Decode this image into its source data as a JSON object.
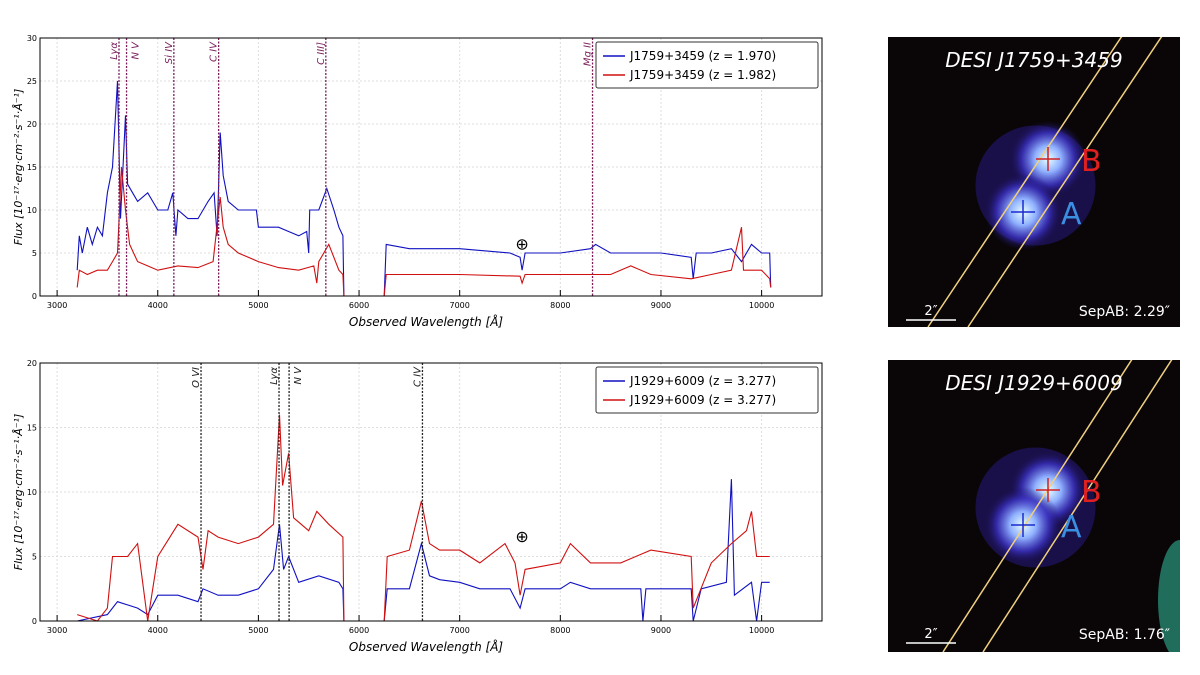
{
  "chart_data": [
    {
      "type": "line",
      "xlabel": "Observed Wavelength [Å]",
      "ylabel": "Flux [10⁻¹⁷·erg·cm⁻²·s⁻¹·Å⁻¹]",
      "xlim": [
        2830,
        10600
      ],
      "ylim": [
        0,
        30
      ],
      "xticks": [
        3000,
        4000,
        5000,
        6000,
        7000,
        8000,
        9000,
        10000
      ],
      "yticks": [
        0,
        5,
        10,
        15,
        20,
        25,
        30
      ],
      "grid": true,
      "legend_position": "top-right",
      "line_color": "#7a1f5c",
      "lines": [
        {
          "label": "Lyα",
          "x": 3615
        },
        {
          "label": "N V",
          "x": 3690
        },
        {
          "label": "Si IV",
          "x": 4160
        },
        {
          "label": "C IV",
          "x": 4605
        },
        {
          "label": "C III]",
          "x": 5670
        },
        {
          "label": "Mg II",
          "x": 8320
        }
      ],
      "telluric": {
        "symbol": "⊕",
        "x": 7620,
        "y": 6
      },
      "series": [
        {
          "name": "J1759+3459 (z = 1.970)",
          "color": "#1010c0",
          "x": [
            3200,
            3220,
            3250,
            3300,
            3350,
            3400,
            3450,
            3500,
            3550,
            3600,
            3630,
            3680,
            3700,
            3750,
            3800,
            3900,
            4000,
            4100,
            4150,
            4180,
            4200,
            4300,
            4400,
            4500,
            4560,
            4590,
            4620,
            4650,
            4700,
            4800,
            4900,
            4980,
            5000,
            5100,
            5200,
            5300,
            5400,
            5480,
            5500,
            5510,
            5600,
            5680,
            5750,
            5800,
            5840,
            5850,
            null,
            6250,
            6270,
            6500,
            7000,
            7500,
            7600,
            7620,
            7650,
            8000,
            8300,
            8350,
            8500,
            9000,
            9300,
            9320,
            9350,
            9500,
            9700,
            9800,
            9900,
            10000,
            10080,
            10090
          ],
          "y": [
            3,
            7,
            5,
            8,
            6,
            8,
            7,
            12,
            15,
            25,
            9,
            21,
            13,
            12,
            11,
            12,
            10,
            10,
            12,
            7,
            10,
            9,
            9,
            11,
            12,
            7,
            19,
            14,
            11,
            10,
            10,
            10,
            8,
            8,
            8,
            7.5,
            7,
            7.5,
            5,
            10,
            10,
            12.5,
            10,
            8,
            7,
            0,
            null,
            0,
            6,
            5.5,
            5.5,
            5,
            4.5,
            3,
            5,
            5,
            5.5,
            6,
            5,
            5,
            4.5,
            2,
            5,
            5,
            5.5,
            4,
            6,
            5,
            5,
            1
          ]
        },
        {
          "name": "J1759+3459 (z = 1.982)",
          "color": "#d01010",
          "x": [
            3200,
            3220,
            3300,
            3400,
            3500,
            3550,
            3600,
            3640,
            3680,
            3720,
            3800,
            3900,
            4000,
            4200,
            4400,
            4550,
            4620,
            4650,
            4700,
            4800,
            5000,
            5200,
            5400,
            5550,
            5580,
            5600,
            5700,
            5800,
            5840,
            5850,
            null,
            6250,
            6270,
            7000,
            7600,
            7620,
            7650,
            8000,
            8500,
            8700,
            8900,
            9300,
            9500,
            9700,
            9800,
            9820,
            10000,
            10080,
            10090
          ],
          "y": [
            1,
            3,
            2.5,
            3,
            3,
            4,
            5,
            15,
            10,
            6,
            4,
            3.5,
            3,
            3.5,
            3.3,
            4,
            11.5,
            8,
            6,
            5,
            4,
            3.3,
            3,
            3.5,
            1.5,
            4,
            6,
            3,
            2.5,
            0,
            null,
            0,
            2.5,
            2.5,
            2.3,
            1.5,
            2.5,
            2.5,
            2.5,
            3.5,
            2.5,
            2,
            2.5,
            3,
            8,
            3,
            3,
            2,
            1
          ]
        }
      ]
    },
    {
      "type": "line",
      "xlabel": "Observed Wavelength [Å]",
      "ylabel": "Flux [10⁻¹⁷·erg·cm⁻²·s⁻¹·Å⁻¹]",
      "xlim": [
        2830,
        10600
      ],
      "ylim": [
        0,
        20
      ],
      "xticks": [
        3000,
        4000,
        5000,
        6000,
        7000,
        8000,
        9000,
        10000
      ],
      "yticks": [
        0,
        5,
        10,
        15,
        20
      ],
      "grid": true,
      "legend_position": "top-right",
      "line_color": "#222222",
      "lines": [
        {
          "label": "O VI",
          "x": 4430
        },
        {
          "label": "Lyα",
          "x": 5205
        },
        {
          "label": "N V",
          "x": 5305
        },
        {
          "label": "C IV",
          "x": 6630
        }
      ],
      "telluric": {
        "symbol": "⊕",
        "x": 7620,
        "y": 6.5
      },
      "series": [
        {
          "name": "J1929+6009 (z = 3.277)",
          "color": "#1010c0",
          "x": [
            3200,
            3500,
            3600,
            3800,
            3900,
            4000,
            4200,
            4400,
            4450,
            4600,
            4800,
            5000,
            5150,
            5210,
            5250,
            5300,
            5400,
            5600,
            5800,
            5840,
            5850,
            null,
            6250,
            6280,
            6500,
            6620,
            6700,
            6800,
            7000,
            7200,
            7500,
            7600,
            7650,
            8000,
            8100,
            8300,
            8800,
            8820,
            8850,
            9300,
            9320,
            9400,
            9650,
            9700,
            9730,
            9900,
            9950,
            10000,
            10080
          ],
          "y": [
            0,
            0.5,
            1.5,
            1,
            0.5,
            2,
            2,
            1.5,
            2.5,
            2,
            2,
            2.5,
            4,
            7.5,
            4,
            5,
            3,
            3.5,
            3,
            2.5,
            0,
            null,
            0,
            2.5,
            2.5,
            6,
            3.5,
            3.2,
            3,
            2.5,
            2.5,
            1,
            2.5,
            2.5,
            3,
            2.5,
            2.5,
            0,
            2.5,
            2.5,
            0,
            2.5,
            3,
            11,
            2,
            3,
            0,
            3,
            3
          ]
        },
        {
          "name": "J1929+6009 (z = 3.277)",
          "color": "#d01010",
          "x": [
            3200,
            3400,
            3500,
            3550,
            3700,
            3800,
            3900,
            4000,
            4200,
            4400,
            4450,
            4500,
            4600,
            4800,
            5000,
            5150,
            5210,
            5240,
            5300,
            5350,
            5500,
            5580,
            5700,
            5840,
            5850,
            null,
            6250,
            6280,
            6500,
            6620,
            6700,
            6800,
            7000,
            7200,
            7450,
            7550,
            7600,
            7650,
            8000,
            8100,
            8300,
            8600,
            8900,
            9300,
            9320,
            9500,
            9700,
            9850,
            9900,
            9950,
            10080
          ],
          "y": [
            0.5,
            0,
            1,
            5,
            5,
            6,
            0,
            5,
            7.5,
            6.5,
            4,
            7,
            6.5,
            6,
            6.5,
            7.5,
            16,
            10.5,
            13,
            8,
            7,
            8.5,
            7.5,
            6.5,
            0,
            null,
            0,
            5,
            5.5,
            9.3,
            6,
            5.5,
            5.5,
            4.5,
            6,
            4.5,
            2,
            4,
            4.5,
            6,
            4.5,
            4.5,
            5.5,
            5,
            1,
            4.5,
            6,
            7,
            8.5,
            5,
            5
          ]
        }
      ]
    }
  ],
  "images": [
    {
      "title": "DESI J1759+3459",
      "label_a": "A",
      "label_b": "B",
      "scale": "2″",
      "sep": "SepAB: 2.29″",
      "color_a": "#3a8fe0",
      "color_b": "#e02020"
    },
    {
      "title": "DESI J1929+6009",
      "label_a": "A",
      "label_b": "B",
      "scale": "2″",
      "sep": "SepAB: 1.76″",
      "color_a": "#3a8fe0",
      "color_b": "#e02020"
    }
  ]
}
